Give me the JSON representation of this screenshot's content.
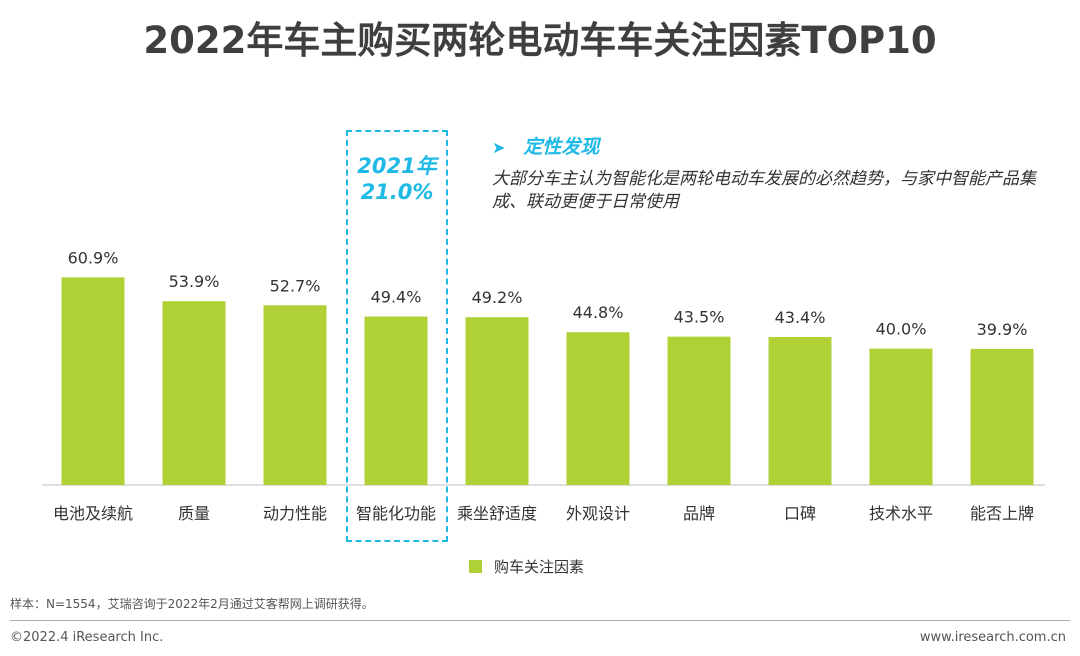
{
  "title": "2022年车主购买两轮电动车车关注因素TOP10",
  "highlight": {
    "year": "2021年",
    "value": "21.0%"
  },
  "note": {
    "heading": "定性发现",
    "body": "大部分车主认为智能化是两轮电动车发展的必然趋势，与家中智能产品集成、联动更便于日常使用"
  },
  "legend_label": "购车关注因素",
  "sample_note": "样本：N=1554，艾瑞咨询于2022年2月通过艾客帮网上调研获得。",
  "footer": {
    "copyright": "©2022.4 iResearch Inc.",
    "website": "www.iresearch.com.cn"
  },
  "colors": {
    "bar": "#b0d136",
    "highlight": "#1fb9e6",
    "axis": "#bfbfbf"
  },
  "chart_data": {
    "type": "bar",
    "categories": [
      "电池及续航",
      "质量",
      "动力性能",
      "智能化功能",
      "乘坐舒适度",
      "外观设计",
      "品牌",
      "口碑",
      "技术水平",
      "能否上牌"
    ],
    "series": [
      {
        "name": "购车关注因素",
        "values": [
          60.9,
          53.9,
          52.7,
          49.4,
          49.2,
          44.8,
          43.5,
          43.4,
          40.0,
          39.9
        ]
      }
    ],
    "data_labels": [
      "60.9%",
      "53.9%",
      "52.7%",
      "49.4%",
      "49.2%",
      "44.8%",
      "43.5%",
      "43.4%",
      "40.0%",
      "39.9%"
    ],
    "ylim": [
      0,
      100
    ],
    "legend": "bottom-center",
    "grid": false
  }
}
